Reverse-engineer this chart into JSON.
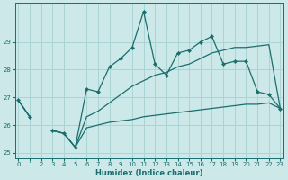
{
  "xlabel": "Humidex (Indice chaleur)",
  "bg_color": "#cce8e8",
  "grid_color": "#aad4d4",
  "line_color": "#1a6e6e",
  "x": [
    0,
    1,
    2,
    3,
    4,
    5,
    6,
    7,
    8,
    9,
    10,
    11,
    12,
    13,
    14,
    15,
    16,
    17,
    18,
    19,
    20,
    21,
    22,
    23
  ],
  "y_main": [
    26.9,
    26.3,
    null,
    25.8,
    25.7,
    25.2,
    27.3,
    27.2,
    28.1,
    28.4,
    28.8,
    30.1,
    28.2,
    27.8,
    28.6,
    28.7,
    29.0,
    29.2,
    28.2,
    28.3,
    28.3,
    27.2,
    27.1,
    26.6
  ],
  "y_upper": [
    26.9,
    26.3,
    null,
    25.8,
    25.7,
    25.2,
    26.3,
    26.5,
    26.8,
    27.1,
    27.4,
    27.6,
    27.8,
    27.9,
    28.1,
    28.2,
    28.4,
    28.6,
    28.7,
    28.8,
    28.8,
    28.85,
    28.9,
    26.6
  ],
  "y_lower": [
    26.9,
    26.3,
    null,
    25.8,
    25.7,
    25.2,
    25.9,
    26.0,
    26.1,
    26.15,
    26.2,
    26.3,
    26.35,
    26.4,
    26.45,
    26.5,
    26.55,
    26.6,
    26.65,
    26.7,
    26.75,
    26.75,
    26.8,
    26.6
  ],
  "ylim": [
    24.8,
    30.4
  ],
  "yticks": [
    25,
    26,
    27,
    28,
    29
  ],
  "xticks": [
    0,
    1,
    2,
    3,
    4,
    5,
    6,
    7,
    8,
    9,
    10,
    11,
    12,
    13,
    14,
    15,
    16,
    17,
    18,
    19,
    20,
    21,
    22,
    23
  ],
  "xlim": [
    -0.3,
    23.3
  ]
}
